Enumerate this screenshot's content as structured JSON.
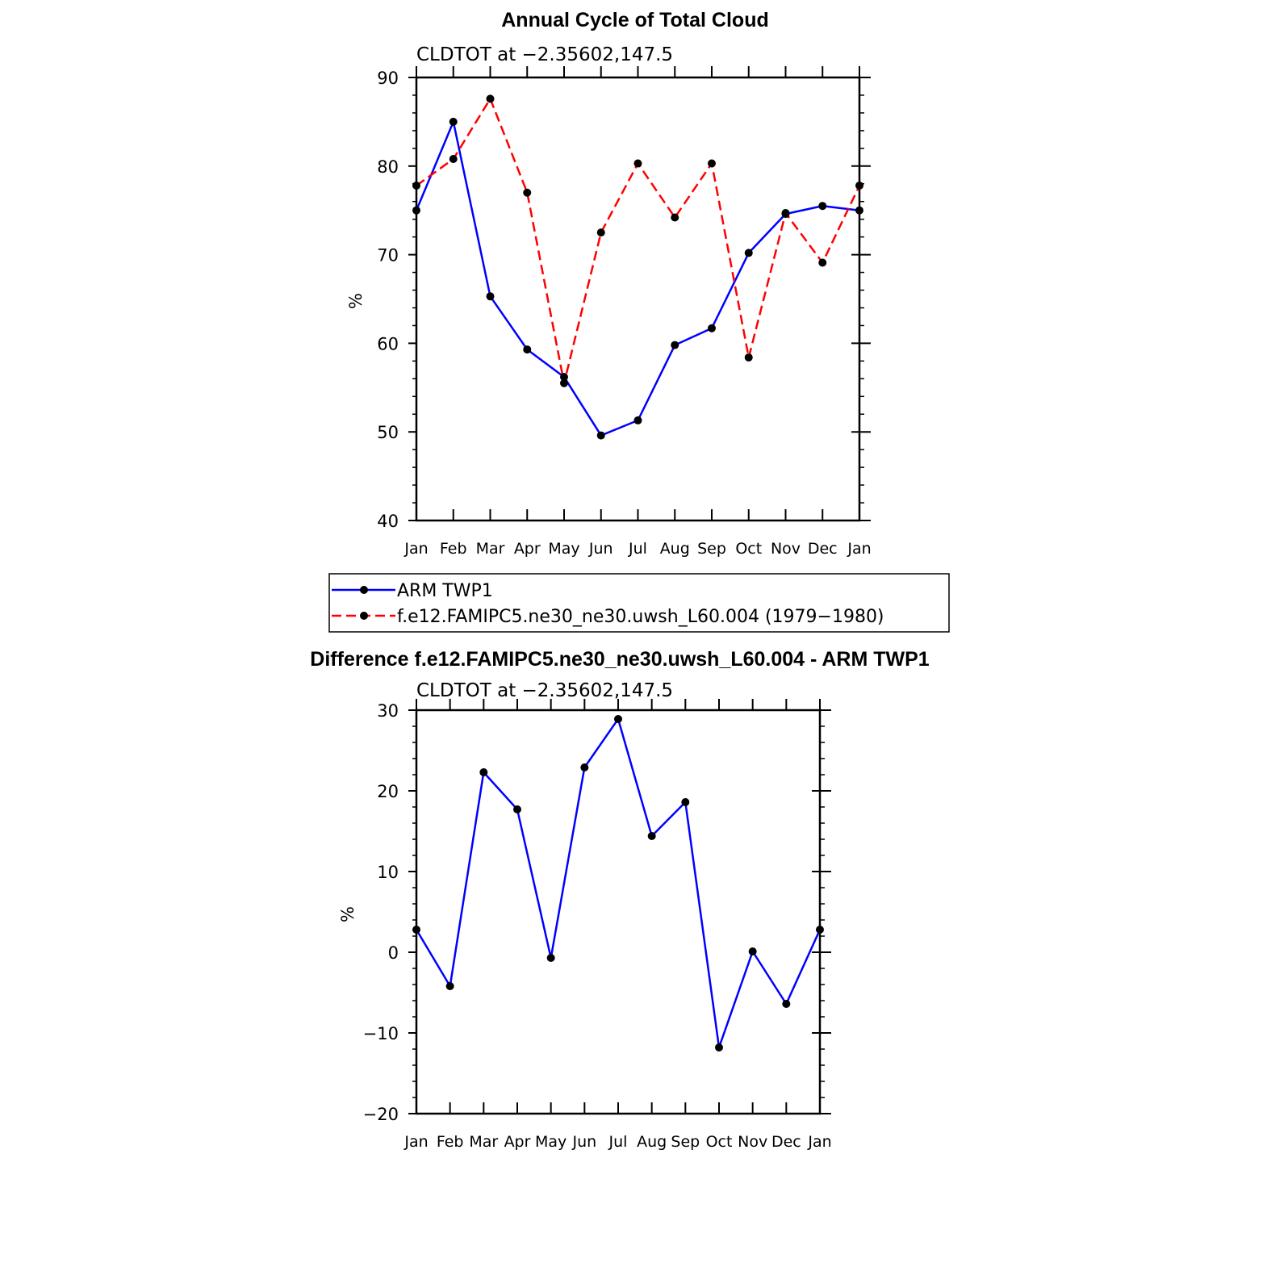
{
  "chart_data": [
    {
      "type": "line",
      "title": "Annual Cycle of Total Cloud",
      "subtitle": "CLDTOT at −2.35602,147.5",
      "ylabel": "%",
      "ylim": [
        40,
        90
      ],
      "yticks": [
        40,
        50,
        60,
        70,
        80,
        90
      ],
      "categories": [
        "Jan",
        "Feb",
        "Mar",
        "Apr",
        "May",
        "Jun",
        "Jul",
        "Aug",
        "Sep",
        "Oct",
        "Nov",
        "Dec",
        "Jan"
      ],
      "grid": false,
      "legend_position": "bottom",
      "series": [
        {
          "name": "ARM TWP1",
          "color": "#0000ff",
          "dash": "solid",
          "values": [
            75,
            85,
            65.3,
            59.3,
            56.2,
            49.6,
            51.3,
            59.8,
            61.7,
            70.2,
            74.6,
            75.5,
            75
          ]
        },
        {
          "name": "f.e12.FAMIPC5.ne30_ne30.uwsh_L60.004 (1979−1980)",
          "color": "#ff0000",
          "dash": "dashed",
          "values": [
            77.8,
            80.8,
            87.6,
            77,
            55.5,
            72.5,
            80.3,
            74.2,
            80.3,
            58.4,
            74.7,
            69.1,
            77.8
          ]
        }
      ]
    },
    {
      "type": "line",
      "title": "Difference f.e12.FAMIPC5.ne30_ne30.uwsh_L60.004 - ARM TWP1",
      "subtitle": "CLDTOT at −2.35602,147.5",
      "ylabel": "%",
      "ylim": [
        -20,
        30
      ],
      "yticks": [
        -20,
        -10,
        0,
        10,
        20,
        30
      ],
      "ytick_labels": [
        "−20",
        "−10",
        "0",
        "10",
        "20",
        "30"
      ],
      "categories": [
        "Jan",
        "Feb",
        "Mar",
        "Apr",
        "May",
        "Jun",
        "Jul",
        "Aug",
        "Sep",
        "Oct",
        "Nov",
        "Dec",
        "Jan"
      ],
      "grid": false,
      "series": [
        {
          "color": "#0000ff",
          "dash": "solid",
          "values": [
            2.8,
            -4.2,
            22.3,
            17.7,
            -0.7,
            22.9,
            28.9,
            14.4,
            18.6,
            -11.8,
            0.1,
            -6.4,
            2.8
          ]
        }
      ]
    }
  ]
}
